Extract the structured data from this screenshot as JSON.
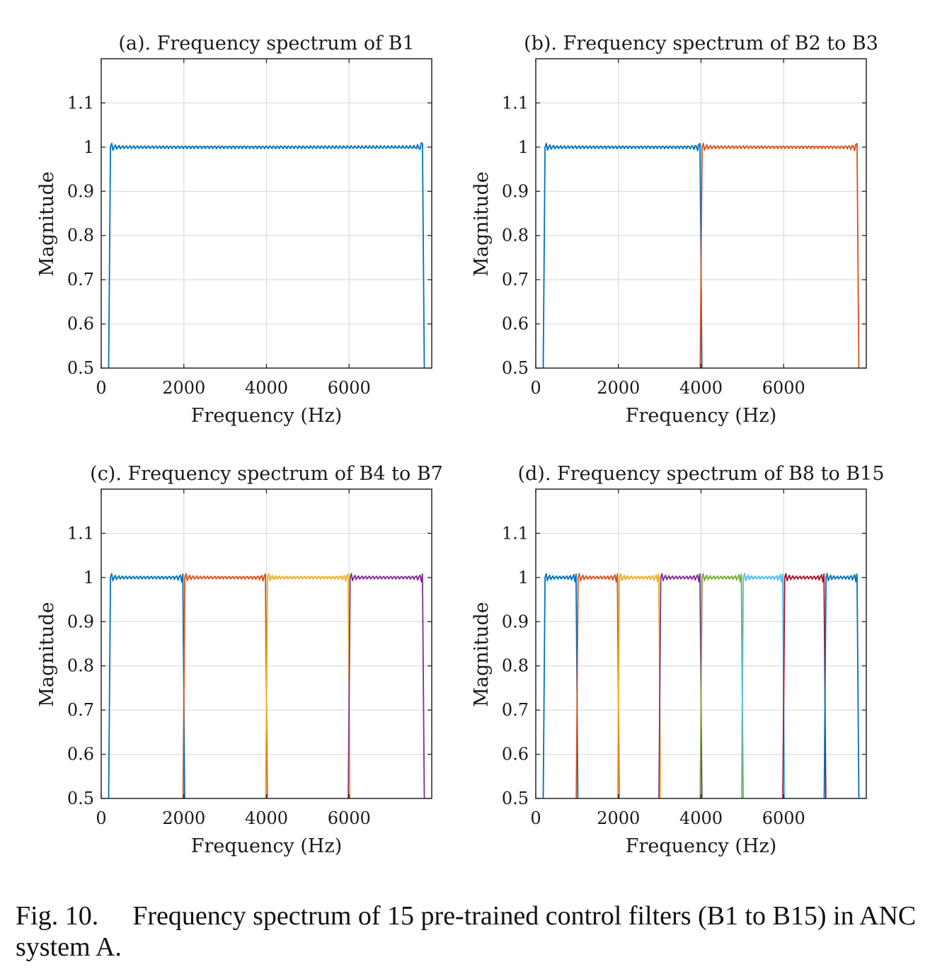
{
  "caption": {
    "label": "Fig. 10.",
    "text": "Frequency spectrum of 15 pre-trained control filters (B1 to B15) in ANC system A."
  },
  "chart_data": [
    {
      "type": "line",
      "title": "(a). Frequency spectrum of B1",
      "xlabel": "Frequency (Hz)",
      "ylabel": "Magnitude",
      "xlim": [
        0,
        8000
      ],
      "ylim": [
        0.5,
        1.2
      ],
      "xticks": [
        "0",
        "2000",
        "4000",
        "6000"
      ],
      "yticks": [
        "0.5",
        "0.6",
        "0.7",
        "0.8",
        "0.9",
        "1",
        "1.1"
      ],
      "grid": true,
      "series": [
        {
          "color": "#0072BD",
          "band": [
            200,
            7800
          ],
          "values_in_band": 1.0,
          "values_outside": 0.5
        }
      ]
    },
    {
      "type": "line",
      "title": "(b). Frequency spectrum of B2 to B3",
      "xlabel": "Frequency (Hz)",
      "ylabel": "Magnitude",
      "xlim": [
        0,
        8000
      ],
      "ylim": [
        0.5,
        1.2
      ],
      "xticks": [
        "0",
        "2000",
        "4000",
        "6000"
      ],
      "yticks": [
        "0.5",
        "0.6",
        "0.7",
        "0.8",
        "0.9",
        "1",
        "1.1"
      ],
      "grid": true,
      "series": [
        {
          "color": "#0072BD",
          "band": [
            200,
            4000
          ],
          "values_in_band": 1.0,
          "values_outside": 0.5
        },
        {
          "color": "#D95319",
          "band": [
            4000,
            7800
          ],
          "values_in_band": 1.0,
          "values_outside": 0.5
        }
      ]
    },
    {
      "type": "line",
      "title": "(c). Frequency spectrum of B4 to B7",
      "xlabel": "Frequency (Hz)",
      "ylabel": "Magnitude",
      "xlim": [
        0,
        8000
      ],
      "ylim": [
        0.5,
        1.2
      ],
      "xticks": [
        "0",
        "2000",
        "4000",
        "6000"
      ],
      "yticks": [
        "0.5",
        "0.6",
        "0.7",
        "0.8",
        "0.9",
        "1",
        "1.1"
      ],
      "grid": true,
      "series": [
        {
          "color": "#0072BD",
          "band": [
            200,
            2000
          ],
          "values_in_band": 1.0,
          "values_outside": 0.5
        },
        {
          "color": "#D95319",
          "band": [
            2000,
            4000
          ],
          "values_in_band": 1.0,
          "values_outside": 0.5
        },
        {
          "color": "#EDB120",
          "band": [
            4000,
            6000
          ],
          "values_in_band": 1.0,
          "values_outside": 0.5
        },
        {
          "color": "#7E2F8E",
          "band": [
            6000,
            7800
          ],
          "values_in_band": 1.0,
          "values_outside": 0.5
        }
      ]
    },
    {
      "type": "line",
      "title": "(d). Frequency spectrum of B8 to B15",
      "xlabel": "Frequency (Hz)",
      "ylabel": "Magnitude",
      "xlim": [
        0,
        8000
      ],
      "ylim": [
        0.5,
        1.2
      ],
      "xticks": [
        "0",
        "2000",
        "4000",
        "6000"
      ],
      "yticks": [
        "0.5",
        "0.6",
        "0.7",
        "0.8",
        "0.9",
        "1",
        "1.1"
      ],
      "grid": true,
      "series": [
        {
          "color": "#0072BD",
          "band": [
            200,
            1000
          ],
          "values_in_band": 1.0,
          "values_outside": 0.5
        },
        {
          "color": "#D95319",
          "band": [
            1000,
            2000
          ],
          "values_in_band": 1.0,
          "values_outside": 0.5
        },
        {
          "color": "#EDB120",
          "band": [
            2000,
            3000
          ],
          "values_in_band": 1.0,
          "values_outside": 0.5
        },
        {
          "color": "#7E2F8E",
          "band": [
            3000,
            4000
          ],
          "values_in_band": 1.0,
          "values_outside": 0.5
        },
        {
          "color": "#77AC30",
          "band": [
            4000,
            5000
          ],
          "values_in_band": 1.0,
          "values_outside": 0.5
        },
        {
          "color": "#4DBEEE",
          "band": [
            5000,
            6000
          ],
          "values_in_band": 1.0,
          "values_outside": 0.5
        },
        {
          "color": "#A2142F",
          "band": [
            6000,
            7000
          ],
          "values_in_band": 1.0,
          "values_outside": 0.5
        },
        {
          "color": "#0072BD",
          "band": [
            7000,
            7800
          ],
          "values_in_band": 1.0,
          "values_outside": 0.5
        }
      ]
    }
  ]
}
